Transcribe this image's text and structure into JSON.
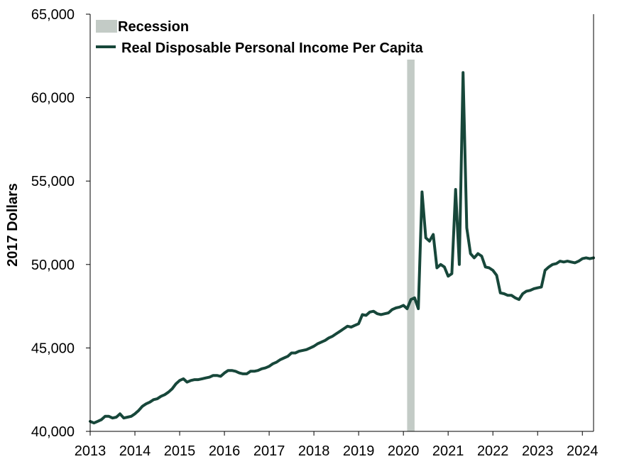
{
  "chart_data": {
    "type": "line",
    "title": "",
    "xlabel": "",
    "ylabel": "2017 Dollars",
    "ylim": [
      40000,
      65000
    ],
    "xlim": [
      "2013-01",
      "2024-04"
    ],
    "x_ticks": [
      "2013",
      "2014",
      "2015",
      "2016",
      "2017",
      "2018",
      "2019",
      "2020",
      "2021",
      "2022",
      "2023",
      "2024"
    ],
    "y_ticks": [
      "40,000",
      "45,000",
      "50,000",
      "55,000",
      "60,000",
      "65,000"
    ],
    "grid": false,
    "legend_position": "top-left",
    "legend": {
      "recession_label": "Recession",
      "series_label": "Real Disposable Personal Income Per Capita"
    },
    "recession_bands": [
      {
        "start": "2020-02",
        "end": "2020-04",
        "color": "#c3cbc6"
      }
    ],
    "series": [
      {
        "name": "Real Disposable Personal Income Per Capita",
        "color": "#17473a",
        "points": [
          [
            "2013-01",
            40600
          ],
          [
            "2013-02",
            40500
          ],
          [
            "2013-03",
            40600
          ],
          [
            "2013-04",
            40700
          ],
          [
            "2013-05",
            40900
          ],
          [
            "2013-06",
            40900
          ],
          [
            "2013-07",
            40800
          ],
          [
            "2013-08",
            40850
          ],
          [
            "2013-09",
            41050
          ],
          [
            "2013-10",
            40800
          ],
          [
            "2013-11",
            40850
          ],
          [
            "2013-12",
            40900
          ],
          [
            "2014-01",
            41050
          ],
          [
            "2014-02",
            41250
          ],
          [
            "2014-03",
            41500
          ],
          [
            "2014-04",
            41650
          ],
          [
            "2014-05",
            41750
          ],
          [
            "2014-06",
            41900
          ],
          [
            "2014-07",
            41950
          ],
          [
            "2014-08",
            42100
          ],
          [
            "2014-09",
            42200
          ],
          [
            "2014-10",
            42350
          ],
          [
            "2014-11",
            42550
          ],
          [
            "2014-12",
            42850
          ],
          [
            "2015-01",
            43050
          ],
          [
            "2015-02",
            43150
          ],
          [
            "2015-03",
            42950
          ],
          [
            "2015-04",
            43050
          ],
          [
            "2015-05",
            43100
          ],
          [
            "2015-06",
            43100
          ],
          [
            "2015-07",
            43150
          ],
          [
            "2015-08",
            43200
          ],
          [
            "2015-09",
            43250
          ],
          [
            "2015-10",
            43350
          ],
          [
            "2015-11",
            43350
          ],
          [
            "2015-12",
            43300
          ],
          [
            "2016-01",
            43500
          ],
          [
            "2016-02",
            43650
          ],
          [
            "2016-03",
            43650
          ],
          [
            "2016-04",
            43600
          ],
          [
            "2016-05",
            43500
          ],
          [
            "2016-06",
            43450
          ],
          [
            "2016-07",
            43450
          ],
          [
            "2016-08",
            43600
          ],
          [
            "2016-09",
            43600
          ],
          [
            "2016-10",
            43650
          ],
          [
            "2016-11",
            43750
          ],
          [
            "2016-12",
            43800
          ],
          [
            "2017-01",
            43900
          ],
          [
            "2017-02",
            44050
          ],
          [
            "2017-03",
            44150
          ],
          [
            "2017-04",
            44300
          ],
          [
            "2017-05",
            44400
          ],
          [
            "2017-06",
            44500
          ],
          [
            "2017-07",
            44700
          ],
          [
            "2017-08",
            44700
          ],
          [
            "2017-09",
            44800
          ],
          [
            "2017-10",
            44850
          ],
          [
            "2017-11",
            44900
          ],
          [
            "2017-12",
            45000
          ],
          [
            "2018-01",
            45100
          ],
          [
            "2018-02",
            45250
          ],
          [
            "2018-03",
            45350
          ],
          [
            "2018-04",
            45450
          ],
          [
            "2018-05",
            45600
          ],
          [
            "2018-06",
            45700
          ],
          [
            "2018-07",
            45850
          ],
          [
            "2018-08",
            46000
          ],
          [
            "2018-09",
            46150
          ],
          [
            "2018-10",
            46300
          ],
          [
            "2018-11",
            46250
          ],
          [
            "2018-12",
            46350
          ],
          [
            "2019-01",
            46450
          ],
          [
            "2019-02",
            47000
          ],
          [
            "2019-03",
            46950
          ],
          [
            "2019-04",
            47150
          ],
          [
            "2019-05",
            47200
          ],
          [
            "2019-06",
            47050
          ],
          [
            "2019-07",
            47000
          ],
          [
            "2019-08",
            47050
          ],
          [
            "2019-09",
            47100
          ],
          [
            "2019-10",
            47300
          ],
          [
            "2019-11",
            47400
          ],
          [
            "2019-12",
            47450
          ],
          [
            "2020-01",
            47550
          ],
          [
            "2020-02",
            47350
          ],
          [
            "2020-03",
            47900
          ],
          [
            "2020-04",
            48000
          ],
          [
            "2020-05",
            47350
          ],
          [
            "2020-06",
            54350
          ],
          [
            "2020-07",
            51600
          ],
          [
            "2020-08",
            51400
          ],
          [
            "2020-09",
            51800
          ],
          [
            "2020-10",
            49800
          ],
          [
            "2020-11",
            50000
          ],
          [
            "2020-12",
            49850
          ],
          [
            "2021-01",
            49300
          ],
          [
            "2021-02",
            49450
          ],
          [
            "2021-03",
            54500
          ],
          [
            "2021-04",
            50000
          ],
          [
            "2021-05",
            61500
          ],
          [
            "2021-06",
            52200
          ],
          [
            "2021-07",
            50650
          ],
          [
            "2021-08",
            50400
          ],
          [
            "2021-09",
            50650
          ],
          [
            "2021-10",
            50500
          ],
          [
            "2021-11",
            49850
          ],
          [
            "2021-12",
            49800
          ],
          [
            "2022-01",
            49650
          ],
          [
            "2022-02",
            49350
          ],
          [
            "2022-03",
            48300
          ],
          [
            "2022-04",
            48250
          ],
          [
            "2022-05",
            48150
          ],
          [
            "2022-06",
            48150
          ],
          [
            "2022-07",
            48000
          ],
          [
            "2022-08",
            47900
          ],
          [
            "2022-09",
            48250
          ],
          [
            "2022-10",
            48400
          ],
          [
            "2022-11",
            48450
          ],
          [
            "2022-12",
            48550
          ],
          [
            "2023-01",
            48600
          ],
          [
            "2023-02",
            48650
          ],
          [
            "2023-03",
            49650
          ],
          [
            "2023-04",
            49850
          ],
          [
            "2023-05",
            50000
          ],
          [
            "2023-06",
            50050
          ],
          [
            "2023-07",
            50200
          ],
          [
            "2023-08",
            50150
          ],
          [
            "2023-09",
            50200
          ],
          [
            "2023-10",
            50150
          ],
          [
            "2023-11",
            50100
          ],
          [
            "2023-12",
            50200
          ],
          [
            "2024-01",
            50350
          ],
          [
            "2024-02",
            50400
          ],
          [
            "2024-03",
            50350
          ],
          [
            "2024-04",
            50400
          ]
        ]
      }
    ]
  }
}
